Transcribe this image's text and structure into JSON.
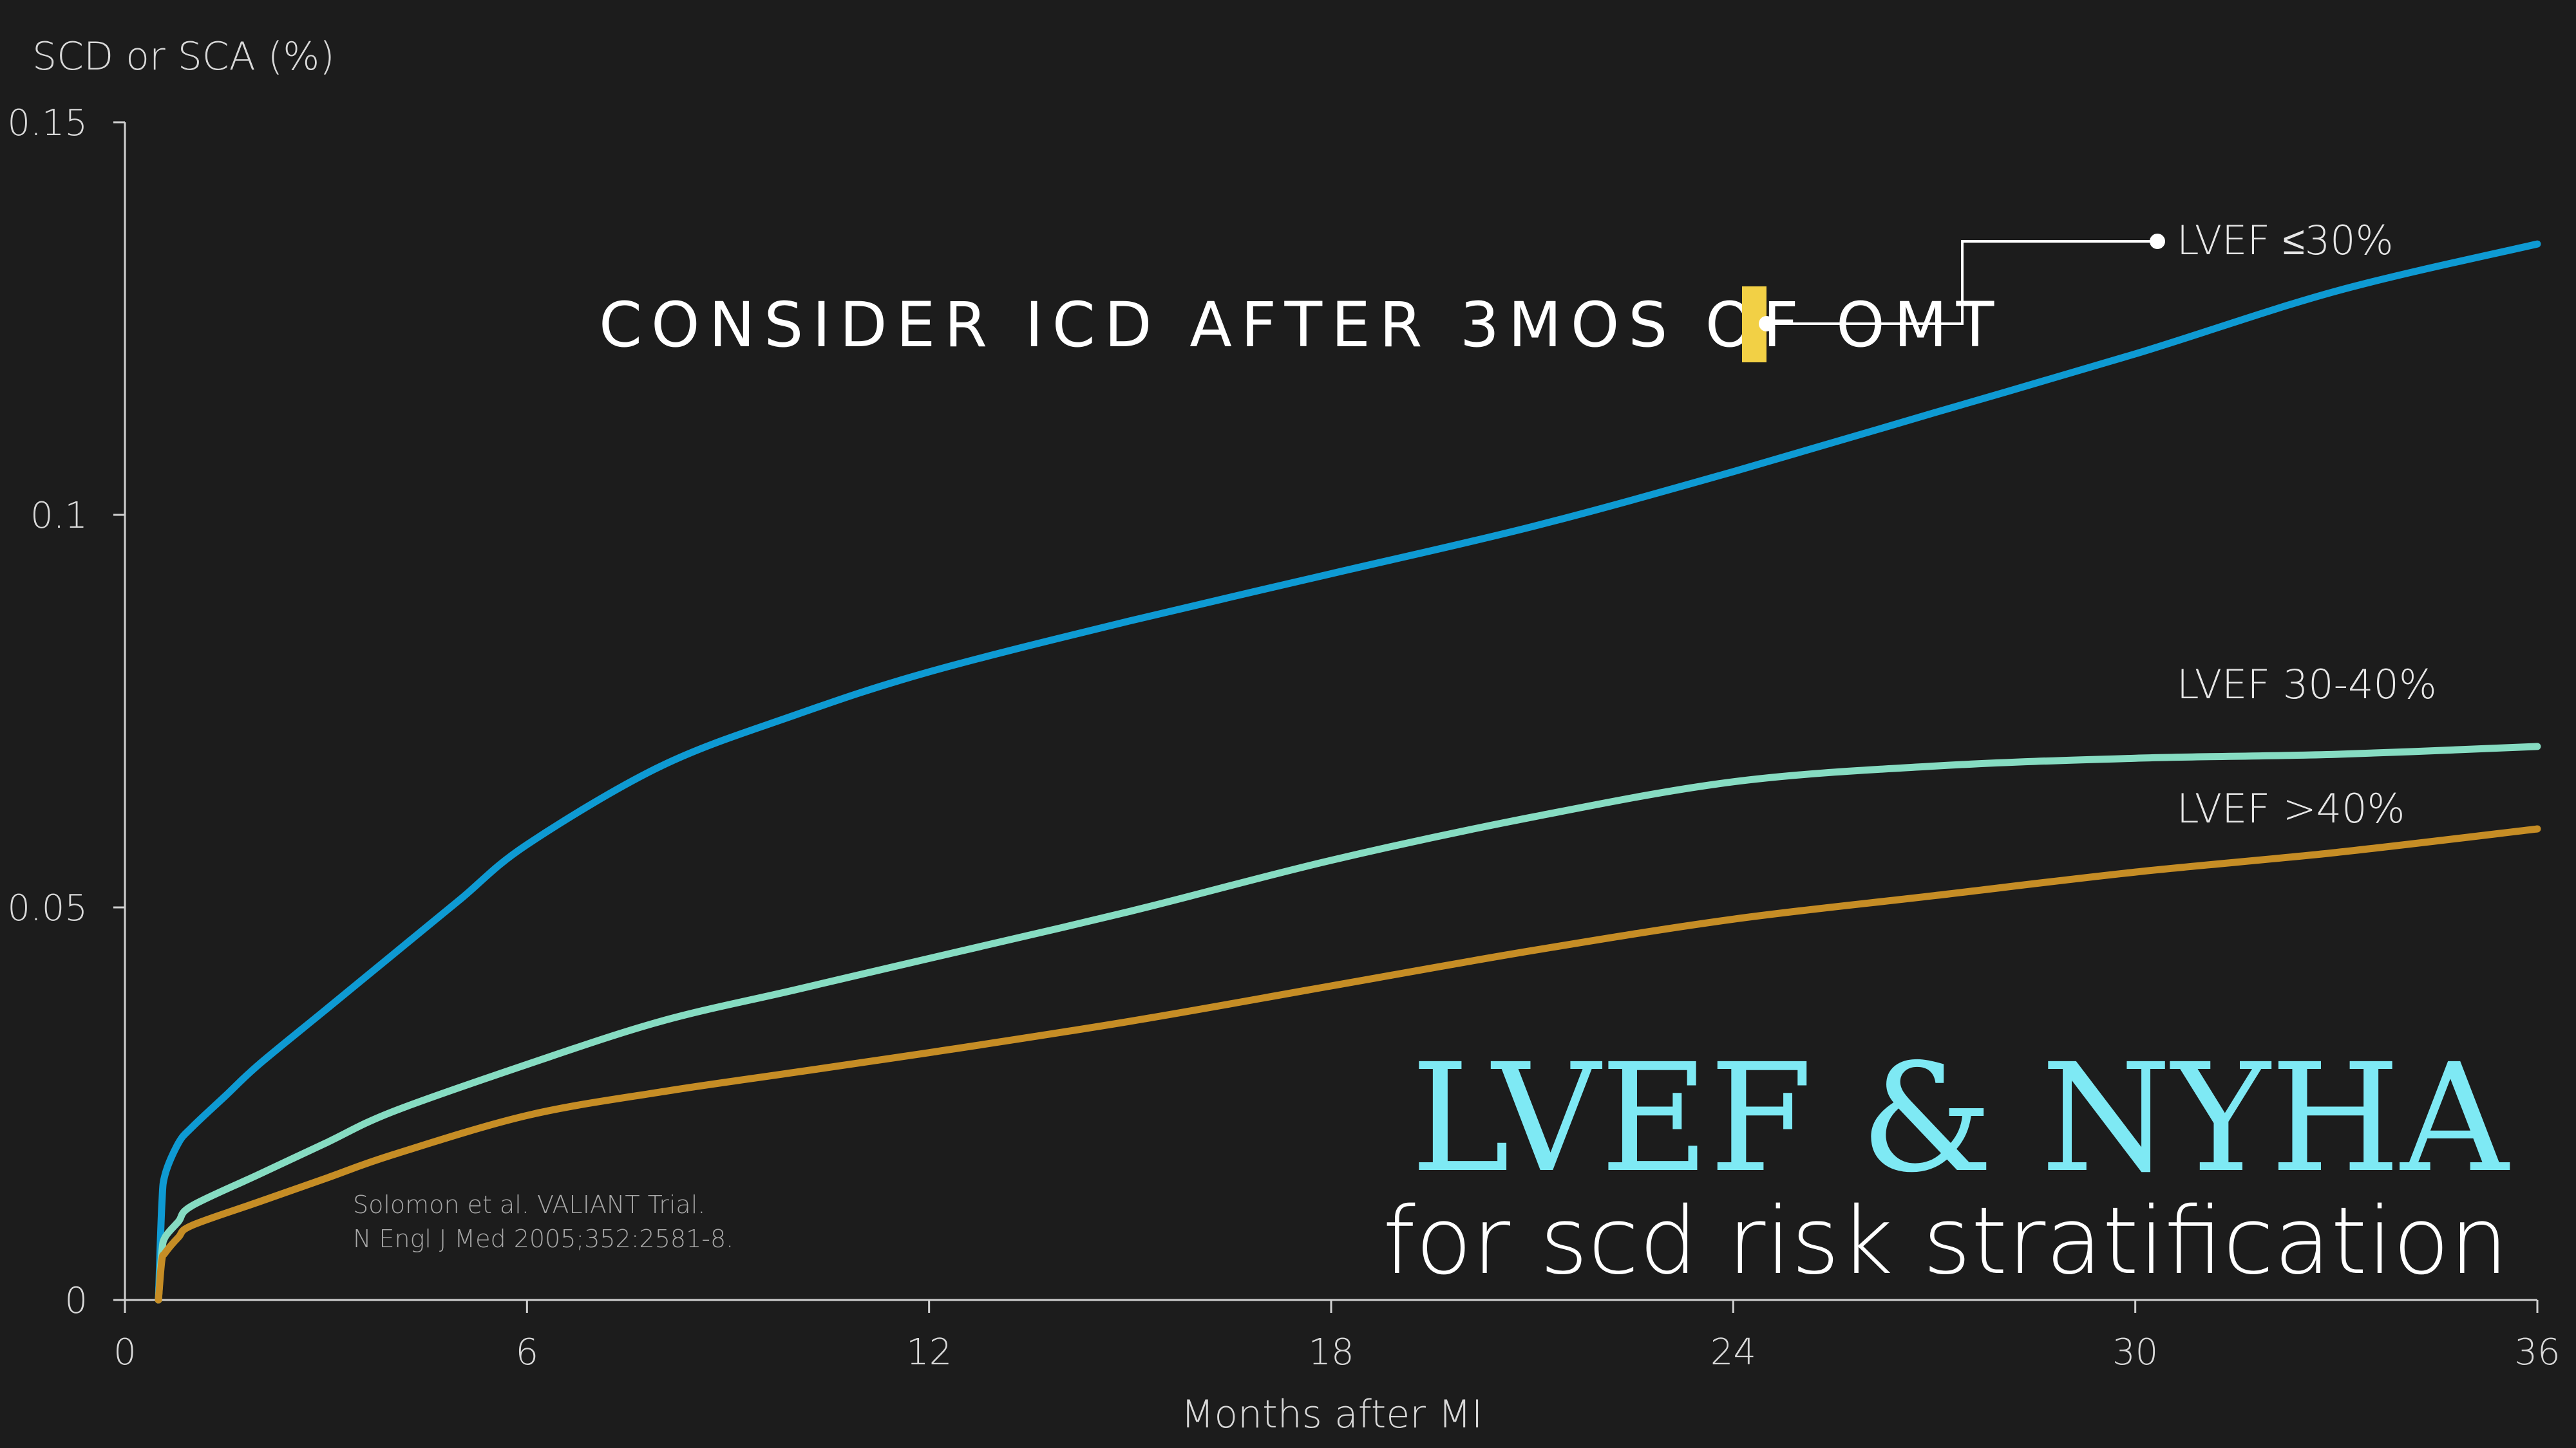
{
  "colors": {
    "background": "#1c1c1c",
    "axis": "#d0d0d0",
    "lvef_le30": "#0e9ad3",
    "lvef_30_40": "#86dcc2",
    "lvef_gt40": "#c68d25",
    "marker": "#f2d045",
    "title": "#7ee9f4"
  },
  "callout": {
    "text": "CONSIDER ICD AFTER 3MOS OF OMT"
  },
  "citation": {
    "line1": "Solomon et al. VALIANT Trial.",
    "line2": "N Engl J Med 2005;352:2581-8."
  },
  "headline": {
    "title": "LVEF & NYHA",
    "subtitle": "for scd risk stratification"
  },
  "chart_data": {
    "type": "line",
    "xlabel": "Months after MI",
    "ylabel": "SCD or SCA (%)",
    "xlim": [
      0,
      36
    ],
    "ylim": [
      0,
      0.15
    ],
    "xticks": [
      0,
      6,
      12,
      18,
      24,
      30,
      36
    ],
    "yticks": [
      {
        "value": 0,
        "label": "0"
      },
      {
        "value": 0.05,
        "label": "0.05"
      },
      {
        "value": 0.1,
        "label": "0.1"
      },
      {
        "value": 0.15,
        "label": "0.15"
      }
    ],
    "grid": false,
    "series": [
      {
        "name": "LVEF ≤30%",
        "colorKey": "lvef_le30",
        "x": [
          0.5,
          0.55,
          0.6,
          0.8,
          1,
          1.5,
          2,
          3,
          4,
          5,
          6,
          8,
          10,
          12,
          15,
          18,
          21,
          24,
          27,
          30,
          33,
          36
        ],
        "y": [
          0,
          0.012,
          0.016,
          0.02,
          0.022,
          0.026,
          0.03,
          0.037,
          0.044,
          0.051,
          0.058,
          0.068,
          0.0745,
          0.08,
          0.0865,
          0.0925,
          0.0985,
          0.1055,
          0.113,
          0.1205,
          0.1285,
          0.1345
        ]
      },
      {
        "name": "LVEF 30-40%",
        "colorKey": "lvef_30_40",
        "x": [
          0.5,
          0.55,
          0.6,
          0.8,
          1,
          2,
          3,
          4,
          6,
          8,
          10,
          12,
          15,
          18,
          21,
          24,
          27,
          30,
          33,
          36
        ],
        "y": [
          0,
          0.006,
          0.008,
          0.01,
          0.012,
          0.016,
          0.02,
          0.024,
          0.03,
          0.0355,
          0.0395,
          0.0435,
          0.0495,
          0.056,
          0.0615,
          0.066,
          0.068,
          0.069,
          0.0695,
          0.0705
        ]
      },
      {
        "name": "LVEF >40%",
        "colorKey": "lvef_gt40",
        "x": [
          0.5,
          0.55,
          0.6,
          0.8,
          1,
          2,
          3,
          4,
          6,
          8,
          10,
          12,
          15,
          18,
          21,
          24,
          27,
          30,
          33,
          36
        ],
        "y": [
          0,
          0.005,
          0.006,
          0.008,
          0.0095,
          0.0125,
          0.0155,
          0.0185,
          0.0235,
          0.0265,
          0.029,
          0.0315,
          0.0355,
          0.04,
          0.0445,
          0.0485,
          0.0515,
          0.0545,
          0.057,
          0.06
        ]
      }
    ]
  }
}
